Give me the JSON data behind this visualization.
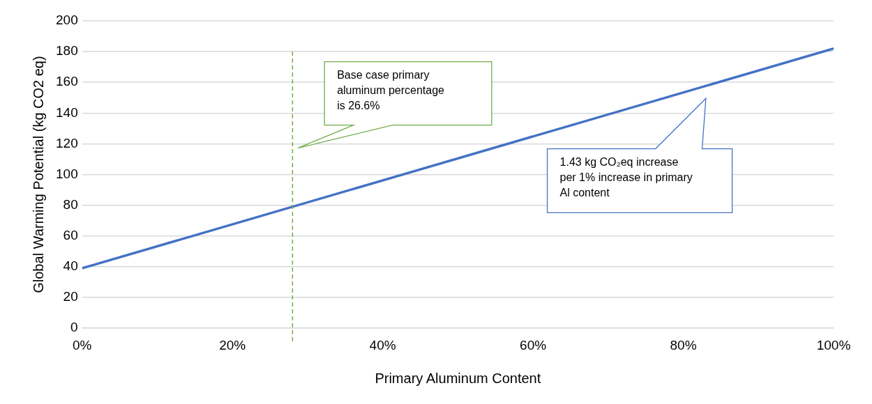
{
  "chart_data": {
    "type": "line",
    "xlabel": "Primary Aluminum Content",
    "ylabel": "Global Warming Potential (kg CO2 eq)",
    "x": [
      0,
      100
    ],
    "series": [
      {
        "color": "#4472c4",
        "values": [
          39,
          182
        ]
      }
    ],
    "xlim": [
      0,
      100
    ],
    "xticks": [
      {
        "value": 0,
        "label": "0%"
      },
      {
        "value": 20,
        "label": "20%"
      },
      {
        "value": 40,
        "label": "40%"
      },
      {
        "value": 60,
        "label": "60%"
      },
      {
        "value": 80,
        "label": "80%"
      },
      {
        "value": 100,
        "label": "100%"
      }
    ],
    "ylim": [
      0,
      200
    ],
    "yticks": [
      0,
      20,
      40,
      60,
      80,
      100,
      120,
      140,
      160,
      180,
      200
    ],
    "grid": "y",
    "legend": false,
    "marker": "none",
    "line_style": "solid",
    "ref_lines": [
      {
        "axis": "x",
        "value": 28,
        "color": "#70ad47",
        "line_style": "dashed"
      }
    ],
    "annotations": [
      "Base case primary aluminum percentage is 26.6%",
      "1.43 kg CO₂eq increase per 1% increase in primary Al content"
    ]
  }
}
